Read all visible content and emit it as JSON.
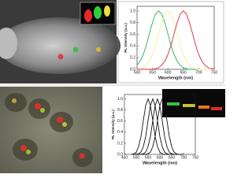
{
  "chart_data": [
    {
      "type": "line",
      "ylabel": "PL Intensity (a.u.)",
      "xlabel": "Wavelength (nm)",
      "xlim": [
        500,
        750
      ],
      "xticks": [
        500,
        550,
        600,
        650,
        700,
        750
      ],
      "ylim": [
        0,
        1.08
      ],
      "yticks": [
        {
          "value": 0,
          "label": "0.0"
        },
        0.2,
        0.4,
        0.6,
        0.8,
        {
          "value": 1,
          "label": "1.0"
        }
      ],
      "x": [
        500,
        510,
        520,
        530,
        540,
        550,
        560,
        570,
        580,
        590,
        600,
        610,
        620,
        630,
        640,
        650,
        660,
        670,
        680,
        690,
        700,
        710,
        720,
        730,
        740,
        750
      ],
      "series": [
        {
          "color": "#22b14c",
          "values": [
            0.07,
            0.14,
            0.25,
            0.41,
            0.61,
            0.8,
            0.95,
            1,
            0.95,
            0.8,
            0.61,
            0.41,
            0.25,
            0.14,
            0.07,
            0.03,
            0.01,
            0,
            0,
            0,
            0,
            0,
            0,
            0,
            0,
            0
          ]
        },
        {
          "color": "#f2ee9a",
          "values": [
            0,
            0.01,
            0.03,
            0.07,
            0.14,
            0.25,
            0.41,
            0.61,
            0.8,
            0.95,
            1,
            0.95,
            0.8,
            0.61,
            0.41,
            0.25,
            0.14,
            0.07,
            0.03,
            0.01,
            0,
            0,
            0,
            0,
            0,
            0
          ]
        },
        {
          "color": "#e0262e",
          "values": [
            0,
            0,
            0,
            0,
            0,
            0,
            0.01,
            0.03,
            0.07,
            0.14,
            0.25,
            0.41,
            0.61,
            0.8,
            0.95,
            1,
            0.95,
            0.8,
            0.61,
            0.41,
            0.25,
            0.14,
            0.07,
            0.03,
            0.01,
            0
          ]
        }
      ]
    },
    {
      "type": "line",
      "ylabel": "PL Intensity (a.u.)",
      "xlabel": "Wavelength (nm)",
      "xlim": [
        450,
        750
      ],
      "xticks": [
        450,
        500,
        550,
        600,
        650,
        700,
        750
      ],
      "ylim": [
        0,
        1.08
      ],
      "yticks": [
        {
          "value": 0,
          "label": "0.0"
        },
        0.2,
        0.4,
        0.6,
        0.8,
        {
          "value": 1,
          "label": "1.0"
        }
      ],
      "x": [
        480,
        490,
        500,
        510,
        520,
        530,
        540,
        550,
        560,
        570,
        580,
        590,
        600,
        610,
        620,
        630,
        640,
        650,
        660,
        670,
        680,
        690,
        700
      ],
      "series": [
        {
          "color": "#111111",
          "values": [
            0,
            0.01,
            0.04,
            0.14,
            0.32,
            0.61,
            0.88,
            1,
            0.88,
            0.61,
            0.32,
            0.14,
            0.04,
            0.01,
            0,
            0,
            0,
            0,
            0,
            0,
            0,
            0,
            0
          ]
        },
        {
          "color": "#111111",
          "values": [
            0,
            0,
            0,
            0.01,
            0.04,
            0.14,
            0.32,
            0.61,
            0.88,
            1,
            0.88,
            0.61,
            0.32,
            0.14,
            0.04,
            0.01,
            0,
            0,
            0,
            0,
            0,
            0,
            0
          ]
        },
        {
          "color": "#111111",
          "values": [
            0,
            0,
            0,
            0,
            0,
            0.01,
            0.04,
            0.14,
            0.32,
            0.61,
            0.88,
            1,
            0.88,
            0.61,
            0.32,
            0.14,
            0.04,
            0.01,
            0,
            0,
            0,
            0,
            0
          ]
        },
        {
          "color": "#111111",
          "values": [
            0,
            0,
            0,
            0,
            0,
            0,
            0,
            0.01,
            0.04,
            0.14,
            0.32,
            0.61,
            0.88,
            1,
            0.88,
            0.61,
            0.32,
            0.14,
            0.04,
            0.01,
            0,
            0,
            0
          ]
        }
      ]
    }
  ]
}
